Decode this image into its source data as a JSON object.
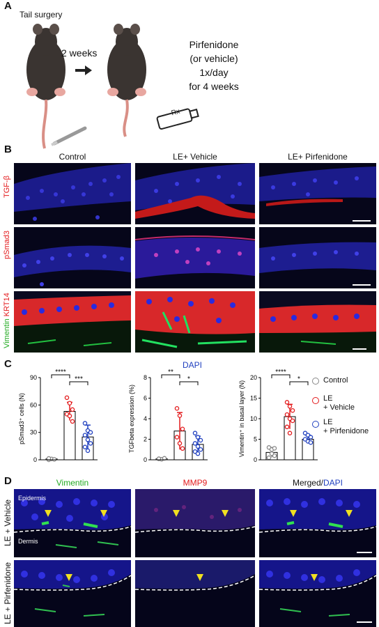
{
  "panel_a": {
    "letter": "A",
    "step1": "Tail surgery",
    "interval": "2 weeks",
    "treatment": [
      "Pirfenidone",
      "(or vehicle)",
      "1x/day",
      "for 4 weeks"
    ],
    "tube_label": "Rx"
  },
  "panel_b": {
    "letter": "B",
    "columns": [
      "Control",
      "LE+ Vehicle",
      "LE+ Pirfenidone"
    ],
    "rows": [
      {
        "label": "TGF-β",
        "color": "#e31a1c"
      },
      {
        "label": "pSmad3",
        "color": "#e31a1c"
      },
      {
        "label_green": "Vimentin",
        "label_red": "KRT14"
      }
    ]
  },
  "panel_c": {
    "letter": "C",
    "dapi_label": "DAPI",
    "legend": [
      {
        "label": "Control",
        "color": "#888888"
      },
      {
        "label": "LE\n+ Vehicle",
        "color": "#e31a1c"
      },
      {
        "label": "LE\n+ Pirfenidone",
        "color": "#1f3fbf"
      }
    ]
  },
  "chart_data": [
    {
      "type": "bar",
      "ylabel": "pSmad3⁺ cells (N)",
      "ylim": [
        0,
        90
      ],
      "yticks": [
        0,
        30,
        60,
        90
      ],
      "categories": [
        "Control",
        "LE + Vehicle",
        "LE + Pirfenidone"
      ],
      "values": [
        1,
        53,
        25
      ],
      "errors": [
        1,
        10,
        13
      ],
      "points": [
        [
          0,
          1,
          0.5,
          1.5
        ],
        [
          68,
          62,
          55,
          50,
          48,
          42
        ],
        [
          40,
          32,
          30,
          27,
          22,
          18,
          14,
          10
        ]
      ],
      "significance": [
        {
          "from": 0,
          "to": 1,
          "label": "****"
        },
        {
          "from": 1,
          "to": 2,
          "label": "***"
        }
      ]
    },
    {
      "type": "bar",
      "ylabel": "TGFbeta expression (%)",
      "ylim": [
        0,
        8
      ],
      "yticks": [
        0,
        2,
        4,
        6,
        8
      ],
      "categories": [
        "Control",
        "LE + Vehicle",
        "LE + Pirfenidone"
      ],
      "values": [
        0.1,
        2.8,
        1.5
      ],
      "errors": [
        0.1,
        1.8,
        0.8
      ],
      "points": [
        [
          0.1,
          0.05,
          0.15,
          0.1
        ],
        [
          5.0,
          4.3,
          3.0,
          2.2,
          1.6,
          1.1
        ],
        [
          2.6,
          2.2,
          1.9,
          1.6,
          1.3,
          1.0,
          0.8,
          0.6
        ]
      ],
      "significance": [
        {
          "from": 0,
          "to": 1,
          "label": "**"
        },
        {
          "from": 1,
          "to": 2,
          "label": "*"
        }
      ]
    },
    {
      "type": "bar",
      "ylabel": "Vimentin⁺ in basal layer (N)",
      "ylim": [
        0,
        20
      ],
      "yticks": [
        0,
        5,
        10,
        15,
        20
      ],
      "categories": [
        "Control",
        "LE + Vehicle",
        "LE + Pirfenidone"
      ],
      "values": [
        1.8,
        10.5,
        5
      ],
      "errors": [
        1.2,
        3,
        1
      ],
      "points": [
        [
          3,
          2.5,
          1,
          0.5,
          1.5,
          2.8
        ],
        [
          14,
          13,
          12,
          11,
          10,
          9.5,
          8,
          6.5
        ],
        [
          6.5,
          6,
          5.5,
          5,
          4.5,
          4.2
        ]
      ],
      "significance": [
        {
          "from": 0,
          "to": 1,
          "label": "****"
        },
        {
          "from": 1,
          "to": 2,
          "label": "*"
        }
      ]
    }
  ],
  "panel_d": {
    "letter": "D",
    "columns": [
      {
        "label": "Vimentin",
        "color": "#22aa22"
      },
      {
        "label": "MMP9",
        "color": "#e31a1c"
      }
    ],
    "merged_label": "Merged/",
    "merged_dapi": "DAPI",
    "rows": [
      "LE + Vehicle",
      "LE + Pirfenidone"
    ],
    "epidermis": "Epidermis",
    "dermis": "Dermis"
  }
}
